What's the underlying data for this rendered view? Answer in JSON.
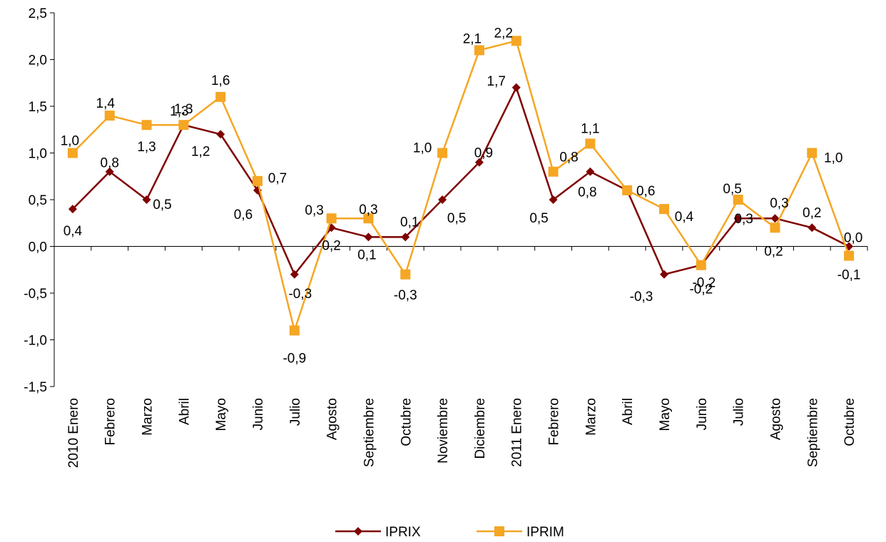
{
  "chart_data": {
    "type": "line",
    "title": "",
    "xlabel": "",
    "ylabel": "",
    "ylim": [
      -1.5,
      2.5
    ],
    "yticks": [
      -1.5,
      -1.0,
      -0.5,
      0.0,
      0.5,
      1.0,
      1.5,
      2.0,
      2.5
    ],
    "ytick_labels": [
      "-1,5",
      "-1,0",
      "-0,5",
      "0,0",
      "0,5",
      "1,0",
      "1,5",
      "2,0",
      "2,5"
    ],
    "grid": false,
    "legend_position": "bottom",
    "categories": [
      "2010 Enero",
      "Febrero",
      "Marzo",
      "Abril",
      "Mayo",
      "Junio",
      "Julio",
      "Agosto",
      "Septiembre",
      "Octubre",
      "Noviembre",
      "Diciembre",
      "2011 Enero",
      "Febrero",
      "Marzo",
      "Abril",
      "Mayo",
      "Junio",
      "Julio",
      "Agosto",
      "Septiembre",
      "Octubre"
    ],
    "series": [
      {
        "name": "IPRIX",
        "color": "#7f0000",
        "marker": "diamond",
        "values": [
          0.4,
          0.8,
          0.5,
          1.3,
          1.2,
          0.6,
          -0.3,
          0.2,
          0.1,
          0.1,
          0.5,
          0.9,
          1.7,
          0.5,
          0.8,
          0.6,
          -0.3,
          -0.2,
          0.3,
          0.3,
          0.2,
          0.0
        ],
        "labels": [
          "0,4",
          "0,8",
          "0,5",
          "1,3",
          "1,2",
          "0,6",
          "-0,3",
          "0,2",
          "0,1",
          "0,1",
          "0,5",
          "0,9",
          "1,7",
          "0,5",
          "0,8",
          "0,6",
          "-0,3",
          "-0,2",
          "0,3",
          "0,3",
          "0,2",
          "0,0"
        ]
      },
      {
        "name": "IPRIM",
        "color": "#f5a623",
        "marker": "square",
        "values": [
          1.0,
          1.4,
          1.3,
          1.3,
          1.6,
          0.7,
          -0.9,
          0.3,
          0.3,
          -0.3,
          1.0,
          2.1,
          2.2,
          0.8,
          1.1,
          0.6,
          0.4,
          -0.2,
          0.5,
          0.2,
          1.0,
          -0.1
        ],
        "labels": [
          "1,0",
          "1,4",
          "1,3",
          "1,3",
          "1,6",
          "0,7",
          "-0,9",
          "0,3",
          "0,3",
          "-0,3",
          "1,0",
          "2,1",
          "2,2",
          "0,8",
          "1,1",
          "0,6",
          "0,4",
          "-0,2",
          "0,5",
          "0,2",
          "1,0",
          "-0,1"
        ]
      }
    ]
  }
}
